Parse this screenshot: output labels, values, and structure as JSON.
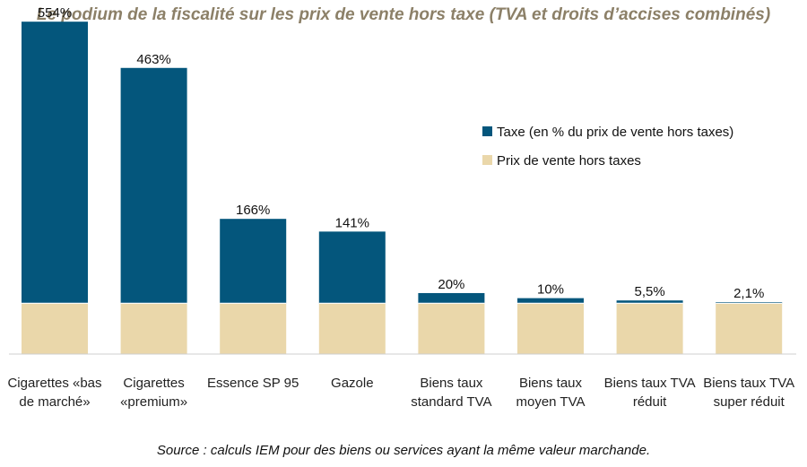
{
  "chart_data": {
    "type": "bar",
    "title": "Le podium de la fiscalité sur les prix de vente hors taxe (TVA et droits d’accises combinés)",
    "source": "Source : calculs IEM pour des biens ou services ayant la même valeur marchande.",
    "categories": [
      [
        "Cigarettes «bas",
        "de marché»"
      ],
      [
        "Cigarettes",
        "«premium»"
      ],
      [
        "Essence SP 95"
      ],
      [
        "Gazole"
      ],
      [
        "Biens taux",
        "standard TVA"
      ],
      [
        "Biens taux",
        "moyen TVA"
      ],
      [
        "Biens taux TVA",
        "réduit"
      ],
      [
        "Biens taux TVA",
        "super réduit"
      ]
    ],
    "series": [
      {
        "name": "Prix de vente hors taxes",
        "values": [
          100,
          100,
          100,
          100,
          100,
          100,
          100,
          100
        ],
        "color": "#ead7aa"
      },
      {
        "name": "Taxe (en % du prix de vente hors taxes)",
        "values": [
          554,
          463,
          166,
          141,
          20,
          10,
          5.5,
          2.1
        ],
        "color": "#04567c"
      }
    ],
    "data_labels": [
      "554%",
      "463%",
      "166%",
      "141%",
      "20%",
      "10%",
      "5,5%",
      "2,1%"
    ],
    "stacked": true,
    "ylim": [
      0,
      680
    ],
    "legend_position": "top-right",
    "grid": false
  }
}
